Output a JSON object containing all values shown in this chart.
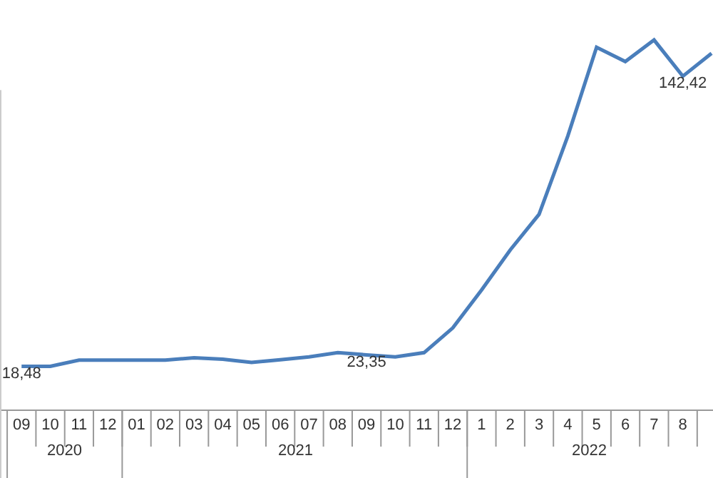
{
  "chart_data": {
    "type": "line",
    "categories": [
      "09",
      "10",
      "11",
      "12",
      "01",
      "02",
      "03",
      "04",
      "05",
      "06",
      "07",
      "08",
      "09",
      "10",
      "11",
      "12",
      "1",
      "2",
      "3",
      "4",
      "5",
      "6",
      "7",
      "8",
      null
    ],
    "series": [
      {
        "color": "#4a7ebb",
        "values": [
          18.48,
          18.48,
          21.1,
          21.1,
          21.1,
          21.1,
          22.1,
          21.5,
          20.1,
          21.3,
          22.5,
          24.3,
          23.35,
          22.5,
          24.3,
          34.9,
          51.1,
          68.2,
          83.4,
          116.9,
          154.8,
          148.7,
          157.9,
          142.42,
          152.2
        ],
        "value_labels": [
          "18,48",
          null,
          null,
          null,
          null,
          null,
          null,
          null,
          null,
          null,
          null,
          null,
          "23,35",
          null,
          null,
          null,
          null,
          null,
          null,
          null,
          null,
          null,
          null,
          "142,42",
          null
        ]
      }
    ],
    "annotations": [
      "2020",
      "2021",
      "2022"
    ],
    "ylim": [
      0,
      175
    ],
    "tick_labels": "x"
  }
}
